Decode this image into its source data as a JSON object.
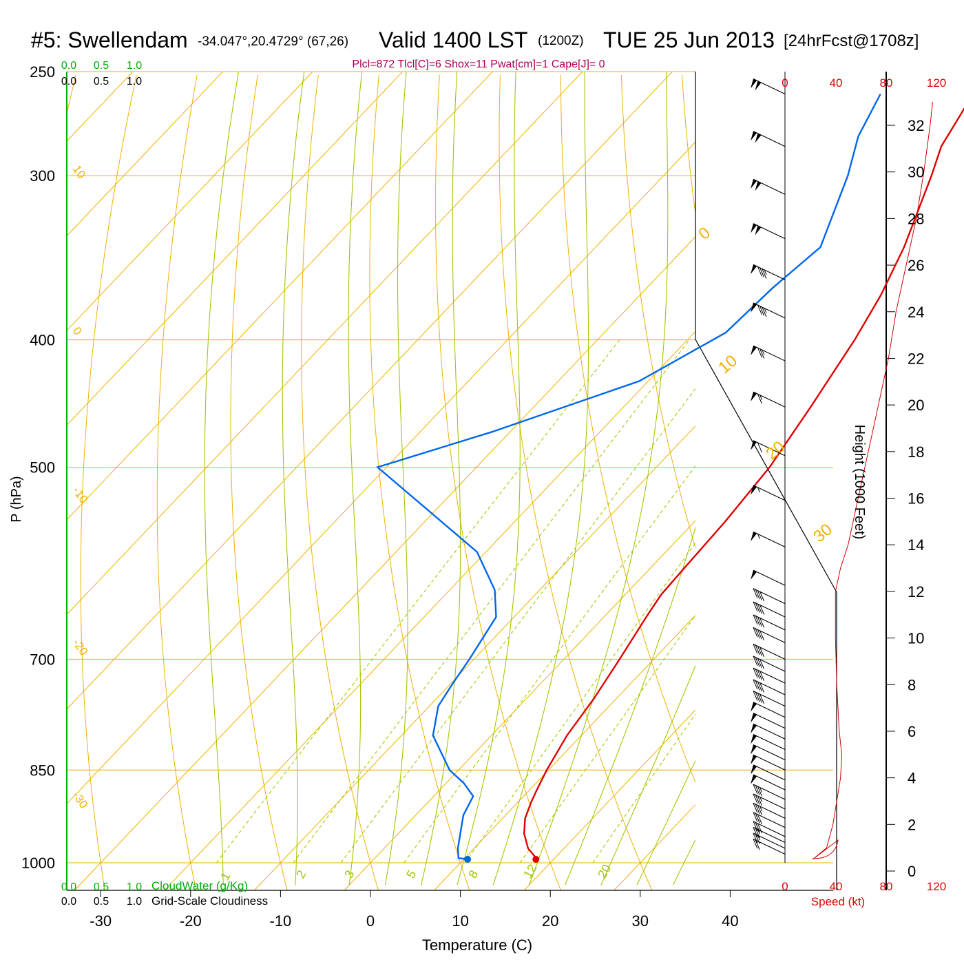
{
  "header": {
    "station": "#5: Swellendam",
    "coords": "-34.047°,20.4729° (67,26)",
    "valid": "Valid 1400 LST",
    "zulu": "(1200Z)",
    "date": "TUE 25 Jun 2013",
    "forecast": "[24hrFcst@1708z]"
  },
  "indices": "Plcl=872 Tlcl[C]=6 Shox=11 Pwat[cm]=1 Cape[J]= 0",
  "cloud_scale": {
    "green_ticks": [
      "0.0",
      "0.5",
      "1.0"
    ],
    "black_ticks": [
      "0.0",
      "0.5",
      "1.0"
    ]
  },
  "bottom_labels": {
    "cloudwater": "CloudWater (g/Kg)",
    "cloudiness": "Grid-Scale Cloudiness"
  },
  "speed_axis": {
    "ticks": [
      "0",
      "40",
      "80",
      "120"
    ],
    "label": "Speed (kt)"
  },
  "colors": {
    "temperature": "#e00000",
    "dewpoint": "#0066ee",
    "isotherm": "#f0b000",
    "dry_adiabat": "#f0b000",
    "moist_adiabat": "#a0c800",
    "mixing_ratio": "#a0c800",
    "cloud_axis": "#00b000",
    "speed": "#cc0000",
    "indices": "#aa0050"
  },
  "chart_data": {
    "type": "skew-t",
    "xlabel": "Temperature (C)",
    "ylabel": "P (hPa)",
    "y2label": "Height (1000 Feet)",
    "x_ticks": [
      -30,
      -20,
      -10,
      0,
      10,
      20,
      30,
      40
    ],
    "p_ticks": [
      250,
      300,
      400,
      500,
      700,
      850,
      1000
    ],
    "height_ticks_kft": [
      0,
      2,
      4,
      6,
      8,
      10,
      12,
      14,
      16,
      18,
      20,
      22,
      24,
      26,
      28,
      30,
      32
    ],
    "isotherm_labels": [
      0,
      10,
      20,
      30
    ],
    "dry_adiabat_labels": [
      10,
      0,
      -10,
      -20,
      -30
    ],
    "mixing_ratio_labels": [
      1,
      2,
      3,
      5,
      8,
      12,
      20
    ],
    "temperature": [
      {
        "p": 996,
        "t": 18.4
      },
      {
        "p": 975,
        "t": 16.0
      },
      {
        "p": 950,
        "t": 14.0
      },
      {
        "p": 925,
        "t": 12.5
      },
      {
        "p": 900,
        "t": 11.5
      },
      {
        "p": 880,
        "t": 10.8
      },
      {
        "p": 850,
        "t": 9.8
      },
      {
        "p": 800,
        "t": 8.4
      },
      {
        "p": 750,
        "t": 7.5
      },
      {
        "p": 700,
        "t": 6.2
      },
      {
        "p": 650,
        "t": 4.7
      },
      {
        "p": 625,
        "t": 4.0
      },
      {
        "p": 600,
        "t": 3.8
      },
      {
        "p": 550,
        "t": 3.4
      },
      {
        "p": 500,
        "t": 2.6
      },
      {
        "p": 450,
        "t": 0.8
      },
      {
        "p": 400,
        "t": -1.4
      },
      {
        "p": 370,
        "t": -3.2
      },
      {
        "p": 340,
        "t": -5.7
      },
      {
        "p": 300,
        "t": -10.2
      },
      {
        "p": 285,
        "t": -12.2
      },
      {
        "p": 260,
        "t": -14.2
      }
    ],
    "dewpoint": [
      {
        "p": 994,
        "t": 10.8
      },
      {
        "p": 992,
        "t": 9.3
      },
      {
        "p": 975,
        "t": 8.2
      },
      {
        "p": 950,
        "t": 6.9
      },
      {
        "p": 920,
        "t": 5.3
      },
      {
        "p": 890,
        "t": 4.4
      },
      {
        "p": 870,
        "t": 2.0
      },
      {
        "p": 850,
        "t": -1.0
      },
      {
        "p": 800,
        "t": -6.5
      },
      {
        "p": 760,
        "t": -9.0
      },
      {
        "p": 730,
        "t": -9.8
      },
      {
        "p": 700,
        "t": -10.5
      },
      {
        "p": 650,
        "t": -12.0
      },
      {
        "p": 620,
        "t": -15.0
      },
      {
        "p": 580,
        "t": -21.0
      },
      {
        "p": 500,
        "t": -41.0
      },
      {
        "p": 470,
        "t": -32.0
      },
      {
        "p": 430,
        "t": -21.0
      },
      {
        "p": 395,
        "t": -16.5
      },
      {
        "p": 365,
        "t": -16.0
      },
      {
        "p": 340,
        "t": -15.0
      },
      {
        "p": 300,
        "t": -19.5
      },
      {
        "p": 280,
        "t": -22.5
      },
      {
        "p": 260,
        "t": -24.5
      }
    ],
    "surface": {
      "t": 18.4,
      "td": 10.8
    },
    "wind_speed_profile_kt": [
      {
        "kft": 0.5,
        "kt": 22
      },
      {
        "kft": 1,
        "kt": 33
      },
      {
        "kft": 2,
        "kt": 38
      },
      {
        "kft": 3,
        "kt": 41
      },
      {
        "kft": 4,
        "kt": 44
      },
      {
        "kft": 5,
        "kt": 45
      },
      {
        "kft": 6,
        "kt": 43
      },
      {
        "kft": 8,
        "kt": 41
      },
      {
        "kft": 10,
        "kt": 40
      },
      {
        "kft": 12,
        "kt": 40
      },
      {
        "kft": 13,
        "kt": 44
      },
      {
        "kft": 14,
        "kt": 50
      },
      {
        "kft": 16,
        "kt": 58
      },
      {
        "kft": 18,
        "kt": 66
      },
      {
        "kft": 20,
        "kt": 74
      },
      {
        "kft": 22,
        "kt": 82
      },
      {
        "kft": 24,
        "kt": 88
      },
      {
        "kft": 26,
        "kt": 96
      },
      {
        "kft": 28,
        "kt": 104
      },
      {
        "kft": 30,
        "kt": 110
      },
      {
        "kft": 32,
        "kt": 115
      },
      {
        "kft": 33,
        "kt": 117
      }
    ],
    "wind_barbs": [
      {
        "p": 260,
        "kt": 100
      },
      {
        "p": 285,
        "kt": 100
      },
      {
        "p": 310,
        "kt": 100
      },
      {
        "p": 335,
        "kt": 100
      },
      {
        "p": 360,
        "kt": 85
      },
      {
        "p": 385,
        "kt": 85
      },
      {
        "p": 415,
        "kt": 75
      },
      {
        "p": 450,
        "kt": 65
      },
      {
        "p": 490,
        "kt": 60
      },
      {
        "p": 530,
        "kt": 55
      },
      {
        "p": 575,
        "kt": 55
      },
      {
        "p": 615,
        "kt": 50
      },
      {
        "p": 635,
        "kt": 40
      },
      {
        "p": 650,
        "kt": 40
      },
      {
        "p": 665,
        "kt": 40
      },
      {
        "p": 680,
        "kt": 40
      },
      {
        "p": 700,
        "kt": 40
      },
      {
        "p": 715,
        "kt": 40
      },
      {
        "p": 730,
        "kt": 40
      },
      {
        "p": 745,
        "kt": 40
      },
      {
        "p": 760,
        "kt": 40
      },
      {
        "p": 775,
        "kt": 50
      },
      {
        "p": 790,
        "kt": 50
      },
      {
        "p": 805,
        "kt": 50
      },
      {
        "p": 820,
        "kt": 50
      },
      {
        "p": 835,
        "kt": 50
      },
      {
        "p": 850,
        "kt": 50
      },
      {
        "p": 865,
        "kt": 50
      },
      {
        "p": 880,
        "kt": 50
      },
      {
        "p": 895,
        "kt": 35
      },
      {
        "p": 910,
        "kt": 35
      },
      {
        "p": 925,
        "kt": 35
      },
      {
        "p": 940,
        "kt": 30
      },
      {
        "p": 955,
        "kt": 30
      },
      {
        "p": 965,
        "kt": 25
      },
      {
        "p": 975,
        "kt": 25
      },
      {
        "p": 985,
        "kt": 20
      }
    ]
  }
}
